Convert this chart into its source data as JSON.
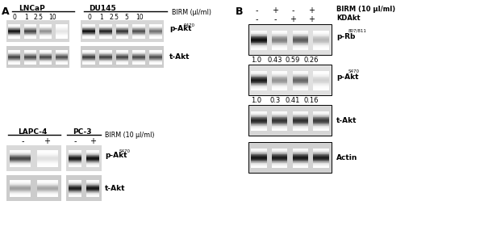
{
  "bg": "#ffffff",
  "blot_bg": "#d8d8d8",
  "blot_bg2": "#c8c8c8",
  "band_dark": 0.08,
  "band_mid": 0.35,
  "band_light": 0.75,
  "pA_label": "A",
  "pB_label": "B",
  "s1_lncap": "LNCaP",
  "s1_du145": "DU145",
  "s1_birm_label": "BIRM (μl/ml)",
  "s1_lncap_doses": [
    "0",
    "1",
    "2.5",
    "10"
  ],
  "s1_du145_doses": [
    "0",
    "1",
    "2.5",
    "5",
    "10"
  ],
  "s1_row1_label": "p-Akt",
  "s1_row1_sup": "S470",
  "s1_row2_label": "t-Akt",
  "s2_lapc4": "LAPC-4",
  "s2_pc3": "PC-3",
  "s2_birm_label": "BIRM (10 μl/ml)",
  "s2_doses": [
    "-",
    "+"
  ],
  "s2_row1_label": "p-Akt",
  "s2_row1_sup": "S470",
  "s2_row2_label": "t-Akt",
  "pB_birm_label": "BIRM (10 μl/ml)",
  "pB_kdakt_label": "KDAkt",
  "pB_birm_syms": [
    "-",
    "+",
    "-",
    "+"
  ],
  "pB_kdakt_syms": [
    "-",
    "-",
    "+",
    "+"
  ],
  "pB_r1_label": "p-Rb",
  "pB_r1_sup": "807/811",
  "pB_r1_vals": [
    "1.0",
    "0.43",
    "0.59",
    "0.26"
  ],
  "pB_r2_label": "p-Akt",
  "pB_r2_sup": "S470",
  "pB_r2_vals": [
    "1.0",
    "0.3",
    "0.41",
    "0.16"
  ],
  "pB_r3_label": "t-Akt",
  "pB_r4_label": "Actin"
}
